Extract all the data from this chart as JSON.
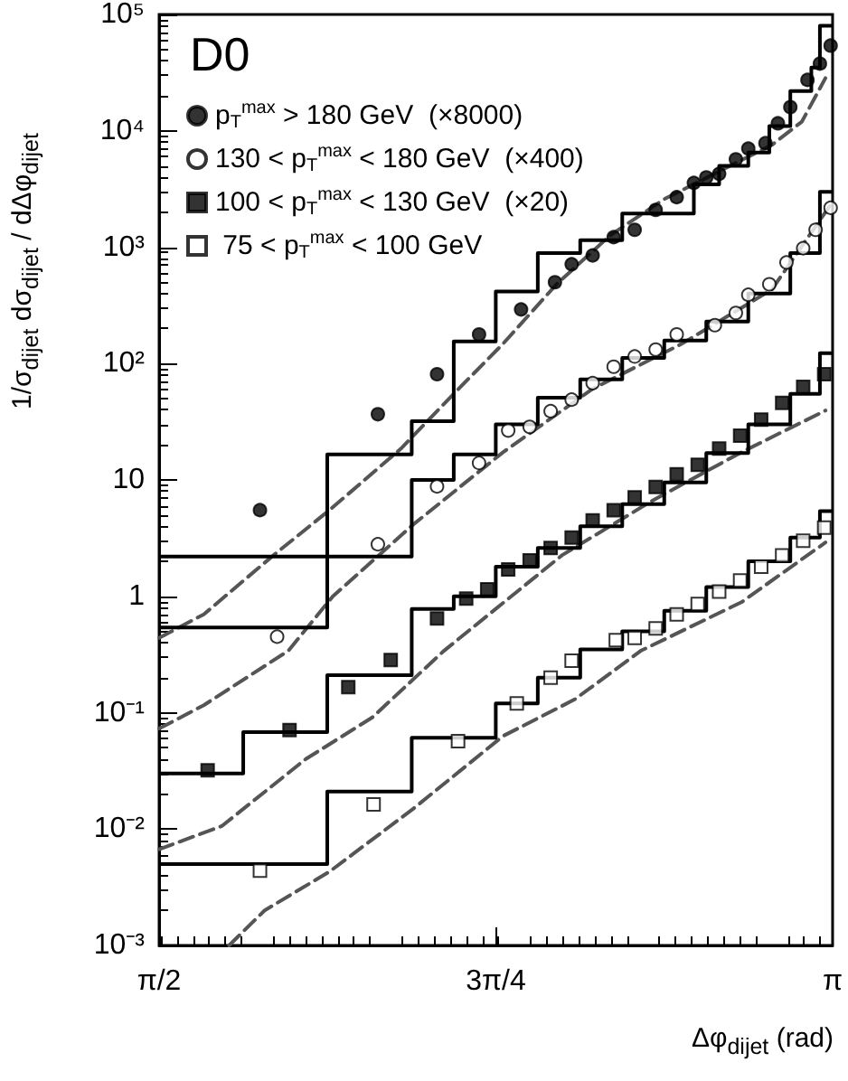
{
  "chart_data": {
    "type": "scatter",
    "title": "D0",
    "xlabel": "Δφ$_{dijet}$  (rad)",
    "ylabel": "1/σ$_{dijet}$  dσ$_{dijet}$ / dΔφ$_{dijet}$",
    "log": "y",
    "grid": false,
    "legend": "top left",
    "xlim": [
      1.5708,
      3.1416
    ],
    "xticks": [
      {
        "value": 1.5708,
        "label": "π/2"
      },
      {
        "value": 2.3562,
        "label": "3π/4"
      },
      {
        "value": 3.1416,
        "label": "π"
      }
    ],
    "ylim": [
      0.001,
      100000
    ],
    "yticks": [
      {
        "value": 0.001,
        "label": "10⁻³"
      },
      {
        "value": 0.01,
        "label": "10⁻²"
      },
      {
        "value": 0.1,
        "label": "10⁻¹"
      },
      1,
      10,
      {
        "value": 100,
        "label": "10²"
      },
      {
        "value": 1000,
        "label": "10³"
      },
      {
        "value": 10000,
        "label": "10⁴"
      },
      {
        "value": 100000,
        "label": "10⁵"
      }
    ],
    "series": [
      {
        "name": "p$_{T}$$^{max}$ > 180 GeV  (×8000)",
        "marker": "circle",
        "color": "#000000",
        "x": [
          1.806,
          2.081,
          2.219,
          2.317,
          2.415,
          2.494,
          2.533,
          2.582,
          2.631,
          2.68,
          2.729,
          2.778,
          2.818,
          2.847,
          2.877,
          2.916,
          2.945,
          2.985,
          3.014,
          3.043,
          3.083,
          3.112,
          3.137
        ],
        "values": [
          5.5,
          36.7,
          81,
          178,
          292,
          500,
          714,
          850,
          1220,
          1410,
          2090,
          2690,
          3570,
          3980,
          4270,
          5690,
          7040,
          7830,
          11600,
          16000,
          27400,
          37800,
          54000
        ]
      },
      {
        "name": "130 < p$_{T}$$^{max}$ < 180 GeV  (×400)",
        "marker": "circle",
        "color": "#ffffff",
        "x": [
          1.846,
          2.081,
          2.219,
          2.317,
          2.385,
          2.435,
          2.484,
          2.533,
          2.582,
          2.631,
          2.68,
          2.729,
          2.778,
          2.867,
          2.916,
          2.945,
          2.994,
          3.034,
          3.073,
          3.102,
          3.137
        ],
        "values": [
          0.45,
          2.8,
          8.8,
          14,
          26.6,
          28.6,
          39,
          49,
          68,
          94,
          115,
          132,
          178,
          214,
          272,
          390,
          480,
          740,
          980,
          1410,
          2180
        ]
      },
      {
        "name": "100 < p$_{T}$$^{max}$ < 130 GeV  (×20)",
        "marker": "square",
        "color": "#000000",
        "x": [
          1.684,
          1.875,
          2.012,
          2.111,
          2.219,
          2.287,
          2.336,
          2.385,
          2.435,
          2.484,
          2.533,
          2.582,
          2.631,
          2.68,
          2.729,
          2.778,
          2.827,
          2.877,
          2.926,
          2.975,
          3.024,
          3.073,
          3.122
        ],
        "values": [
          0.032,
          0.071,
          0.166,
          0.284,
          0.645,
          0.955,
          1.15,
          1.7,
          2.04,
          2.6,
          3.2,
          4.5,
          5.5,
          7.1,
          8.7,
          11.2,
          13.5,
          18.6,
          24,
          33,
          46,
          63,
          81
        ]
      },
      {
        "name": " 75 < p$_{T}$$^{max}$ < 100 GeV",
        "marker": "square",
        "color": "#ffffff",
        "x": [
          1.806,
          2.071,
          2.268,
          2.405,
          2.484,
          2.533,
          2.636,
          2.68,
          2.729,
          2.778,
          2.827,
          2.877,
          2.926,
          2.975,
          3.024,
          3.073,
          3.122
        ],
        "values": [
          0.0044,
          0.0163,
          0.057,
          0.12,
          0.2,
          0.28,
          0.42,
          0.44,
          0.53,
          0.7,
          0.86,
          1.1,
          1.37,
          1.8,
          2.25,
          3.0,
          3.9
        ]
      },
      {
        "type": "step",
        "color": "#000000",
        "x": [
          1.571,
          1.963,
          2.16,
          2.258,
          2.356,
          2.454,
          2.553,
          2.651,
          2.818,
          2.877,
          2.945,
          2.994,
          3.043,
          3.092,
          3.112,
          3.1416
        ],
        "values": [
          0.54,
          16.6,
          32,
          155,
          417,
          890,
          1150,
          1950,
          3470,
          5000,
          6500,
          11000,
          22000,
          35000,
          80000,
          80000
        ]
      },
      {
        "type": "step",
        "color": "#000000",
        "x": [
          1.571,
          2.16,
          2.258,
          2.356,
          2.454,
          2.553,
          2.651,
          2.749,
          2.847,
          2.945,
          3.043,
          3.112,
          3.1416
        ],
        "values": [
          2.2,
          10,
          16.6,
          30,
          51,
          73,
          112,
          158,
          230,
          400,
          890,
          2990,
          2990
        ]
      },
      {
        "type": "step",
        "color": "#000000",
        "x": [
          1.571,
          1.767,
          1.963,
          2.16,
          2.258,
          2.356,
          2.454,
          2.553,
          2.651,
          2.749,
          2.847,
          2.945,
          3.043,
          3.112,
          3.1416
        ],
        "values": [
          0.03,
          0.068,
          0.21,
          0.78,
          1.0,
          1.8,
          2.6,
          4.0,
          6.2,
          9.5,
          17,
          30,
          55,
          123,
          123
        ]
      },
      {
        "type": "step",
        "color": "#000000",
        "x": [
          1.571,
          1.963,
          2.16,
          2.356,
          2.454,
          2.553,
          2.651,
          2.749,
          2.847,
          2.945,
          3.043,
          3.112,
          3.1416
        ],
        "values": [
          0.005,
          0.021,
          0.061,
          0.12,
          0.2,
          0.35,
          0.5,
          0.75,
          1.2,
          2.0,
          3.2,
          5.4,
          5.4
        ]
      },
      {
        "type": "line",
        "line_style": "dashed",
        "marker": "none",
        "color": "#555555",
        "x": [
          1.571,
          1.675,
          1.838,
          1.968,
          2.135,
          2.26,
          2.373,
          2.498,
          2.623,
          2.749,
          2.874,
          3.0,
          3.07,
          3.125
        ],
        "values": [
          0.44,
          0.7,
          2.26,
          5.5,
          18.6,
          56,
          148,
          482,
          1265,
          2590,
          4430,
          7570,
          12000,
          28400
        ]
      },
      {
        "type": "line",
        "line_style": "dashed",
        "marker": "none",
        "color": "#555555",
        "x": [
          1.571,
          1.675,
          1.872,
          1.976,
          2.164,
          2.373,
          2.582,
          2.79,
          3.0,
          3.137
        ],
        "values": [
          0.073,
          0.116,
          0.34,
          1.0,
          4.15,
          17.3,
          60.7,
          148,
          433,
          2320
        ]
      },
      {
        "type": "line",
        "line_style": "dashed",
        "marker": "none",
        "color": "#555555",
        "x": [
          1.571,
          1.717,
          1.913,
          2.068,
          2.235,
          2.511,
          2.72,
          2.929,
          3.125
        ],
        "values": [
          0.0067,
          0.0106,
          0.04,
          0.091,
          0.34,
          2.26,
          6.6,
          17.3,
          39.5
        ]
      },
      {
        "type": "line",
        "line_style": "dashed",
        "marker": "none",
        "color": "#555555",
        "x": [
          1.734,
          1.817,
          1.968,
          2.164,
          2.373,
          2.54,
          2.694,
          2.929,
          3.125
        ],
        "values": [
          0.001,
          0.002,
          0.0043,
          0.015,
          0.063,
          0.13,
          0.34,
          0.89,
          2.9
        ]
      }
    ]
  }
}
